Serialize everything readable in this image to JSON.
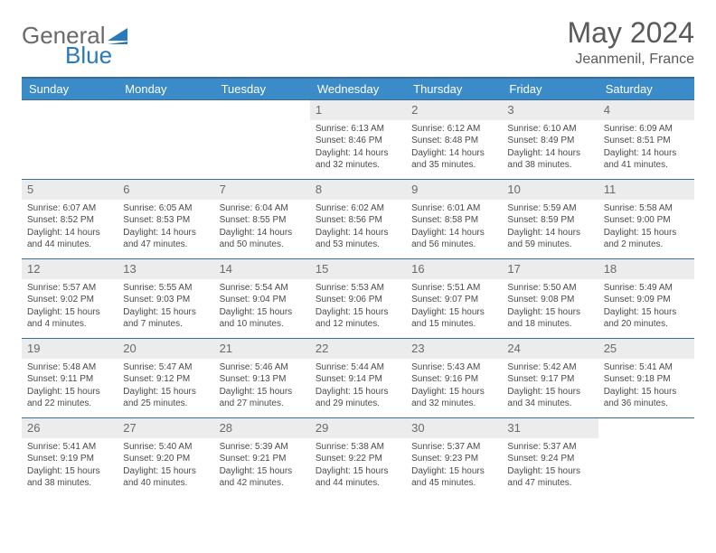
{
  "logo": {
    "general": "General",
    "blue": "Blue"
  },
  "title": "May 2024",
  "subtitle": "Jeanmenil, France",
  "colors": {
    "header_bg": "#3b8bc9",
    "header_border": "#3b6b9a",
    "cell_border": "#3b6b9a",
    "daynum_bg": "#ececec",
    "text": "#4a4a4a",
    "logo_gray": "#6a6a6a",
    "logo_blue": "#2a7ab9"
  },
  "days_of_week": [
    "Sunday",
    "Monday",
    "Tuesday",
    "Wednesday",
    "Thursday",
    "Friday",
    "Saturday"
  ],
  "weeks": [
    [
      {
        "num": "",
        "lines": []
      },
      {
        "num": "",
        "lines": []
      },
      {
        "num": "",
        "lines": []
      },
      {
        "num": "1",
        "lines": [
          "Sunrise: 6:13 AM",
          "Sunset: 8:46 PM",
          "Daylight: 14 hours",
          "and 32 minutes."
        ]
      },
      {
        "num": "2",
        "lines": [
          "Sunrise: 6:12 AM",
          "Sunset: 8:48 PM",
          "Daylight: 14 hours",
          "and 35 minutes."
        ]
      },
      {
        "num": "3",
        "lines": [
          "Sunrise: 6:10 AM",
          "Sunset: 8:49 PM",
          "Daylight: 14 hours",
          "and 38 minutes."
        ]
      },
      {
        "num": "4",
        "lines": [
          "Sunrise: 6:09 AM",
          "Sunset: 8:51 PM",
          "Daylight: 14 hours",
          "and 41 minutes."
        ]
      }
    ],
    [
      {
        "num": "5",
        "lines": [
          "Sunrise: 6:07 AM",
          "Sunset: 8:52 PM",
          "Daylight: 14 hours",
          "and 44 minutes."
        ]
      },
      {
        "num": "6",
        "lines": [
          "Sunrise: 6:05 AM",
          "Sunset: 8:53 PM",
          "Daylight: 14 hours",
          "and 47 minutes."
        ]
      },
      {
        "num": "7",
        "lines": [
          "Sunrise: 6:04 AM",
          "Sunset: 8:55 PM",
          "Daylight: 14 hours",
          "and 50 minutes."
        ]
      },
      {
        "num": "8",
        "lines": [
          "Sunrise: 6:02 AM",
          "Sunset: 8:56 PM",
          "Daylight: 14 hours",
          "and 53 minutes."
        ]
      },
      {
        "num": "9",
        "lines": [
          "Sunrise: 6:01 AM",
          "Sunset: 8:58 PM",
          "Daylight: 14 hours",
          "and 56 minutes."
        ]
      },
      {
        "num": "10",
        "lines": [
          "Sunrise: 5:59 AM",
          "Sunset: 8:59 PM",
          "Daylight: 14 hours",
          "and 59 minutes."
        ]
      },
      {
        "num": "11",
        "lines": [
          "Sunrise: 5:58 AM",
          "Sunset: 9:00 PM",
          "Daylight: 15 hours",
          "and 2 minutes."
        ]
      }
    ],
    [
      {
        "num": "12",
        "lines": [
          "Sunrise: 5:57 AM",
          "Sunset: 9:02 PM",
          "Daylight: 15 hours",
          "and 4 minutes."
        ]
      },
      {
        "num": "13",
        "lines": [
          "Sunrise: 5:55 AM",
          "Sunset: 9:03 PM",
          "Daylight: 15 hours",
          "and 7 minutes."
        ]
      },
      {
        "num": "14",
        "lines": [
          "Sunrise: 5:54 AM",
          "Sunset: 9:04 PM",
          "Daylight: 15 hours",
          "and 10 minutes."
        ]
      },
      {
        "num": "15",
        "lines": [
          "Sunrise: 5:53 AM",
          "Sunset: 9:06 PM",
          "Daylight: 15 hours",
          "and 12 minutes."
        ]
      },
      {
        "num": "16",
        "lines": [
          "Sunrise: 5:51 AM",
          "Sunset: 9:07 PM",
          "Daylight: 15 hours",
          "and 15 minutes."
        ]
      },
      {
        "num": "17",
        "lines": [
          "Sunrise: 5:50 AM",
          "Sunset: 9:08 PM",
          "Daylight: 15 hours",
          "and 18 minutes."
        ]
      },
      {
        "num": "18",
        "lines": [
          "Sunrise: 5:49 AM",
          "Sunset: 9:09 PM",
          "Daylight: 15 hours",
          "and 20 minutes."
        ]
      }
    ],
    [
      {
        "num": "19",
        "lines": [
          "Sunrise: 5:48 AM",
          "Sunset: 9:11 PM",
          "Daylight: 15 hours",
          "and 22 minutes."
        ]
      },
      {
        "num": "20",
        "lines": [
          "Sunrise: 5:47 AM",
          "Sunset: 9:12 PM",
          "Daylight: 15 hours",
          "and 25 minutes."
        ]
      },
      {
        "num": "21",
        "lines": [
          "Sunrise: 5:46 AM",
          "Sunset: 9:13 PM",
          "Daylight: 15 hours",
          "and 27 minutes."
        ]
      },
      {
        "num": "22",
        "lines": [
          "Sunrise: 5:44 AM",
          "Sunset: 9:14 PM",
          "Daylight: 15 hours",
          "and 29 minutes."
        ]
      },
      {
        "num": "23",
        "lines": [
          "Sunrise: 5:43 AM",
          "Sunset: 9:16 PM",
          "Daylight: 15 hours",
          "and 32 minutes."
        ]
      },
      {
        "num": "24",
        "lines": [
          "Sunrise: 5:42 AM",
          "Sunset: 9:17 PM",
          "Daylight: 15 hours",
          "and 34 minutes."
        ]
      },
      {
        "num": "25",
        "lines": [
          "Sunrise: 5:41 AM",
          "Sunset: 9:18 PM",
          "Daylight: 15 hours",
          "and 36 minutes."
        ]
      }
    ],
    [
      {
        "num": "26",
        "lines": [
          "Sunrise: 5:41 AM",
          "Sunset: 9:19 PM",
          "Daylight: 15 hours",
          "and 38 minutes."
        ]
      },
      {
        "num": "27",
        "lines": [
          "Sunrise: 5:40 AM",
          "Sunset: 9:20 PM",
          "Daylight: 15 hours",
          "and 40 minutes."
        ]
      },
      {
        "num": "28",
        "lines": [
          "Sunrise: 5:39 AM",
          "Sunset: 9:21 PM",
          "Daylight: 15 hours",
          "and 42 minutes."
        ]
      },
      {
        "num": "29",
        "lines": [
          "Sunrise: 5:38 AM",
          "Sunset: 9:22 PM",
          "Daylight: 15 hours",
          "and 44 minutes."
        ]
      },
      {
        "num": "30",
        "lines": [
          "Sunrise: 5:37 AM",
          "Sunset: 9:23 PM",
          "Daylight: 15 hours",
          "and 45 minutes."
        ]
      },
      {
        "num": "31",
        "lines": [
          "Sunrise: 5:37 AM",
          "Sunset: 9:24 PM",
          "Daylight: 15 hours",
          "and 47 minutes."
        ]
      },
      {
        "num": "",
        "lines": []
      }
    ]
  ]
}
